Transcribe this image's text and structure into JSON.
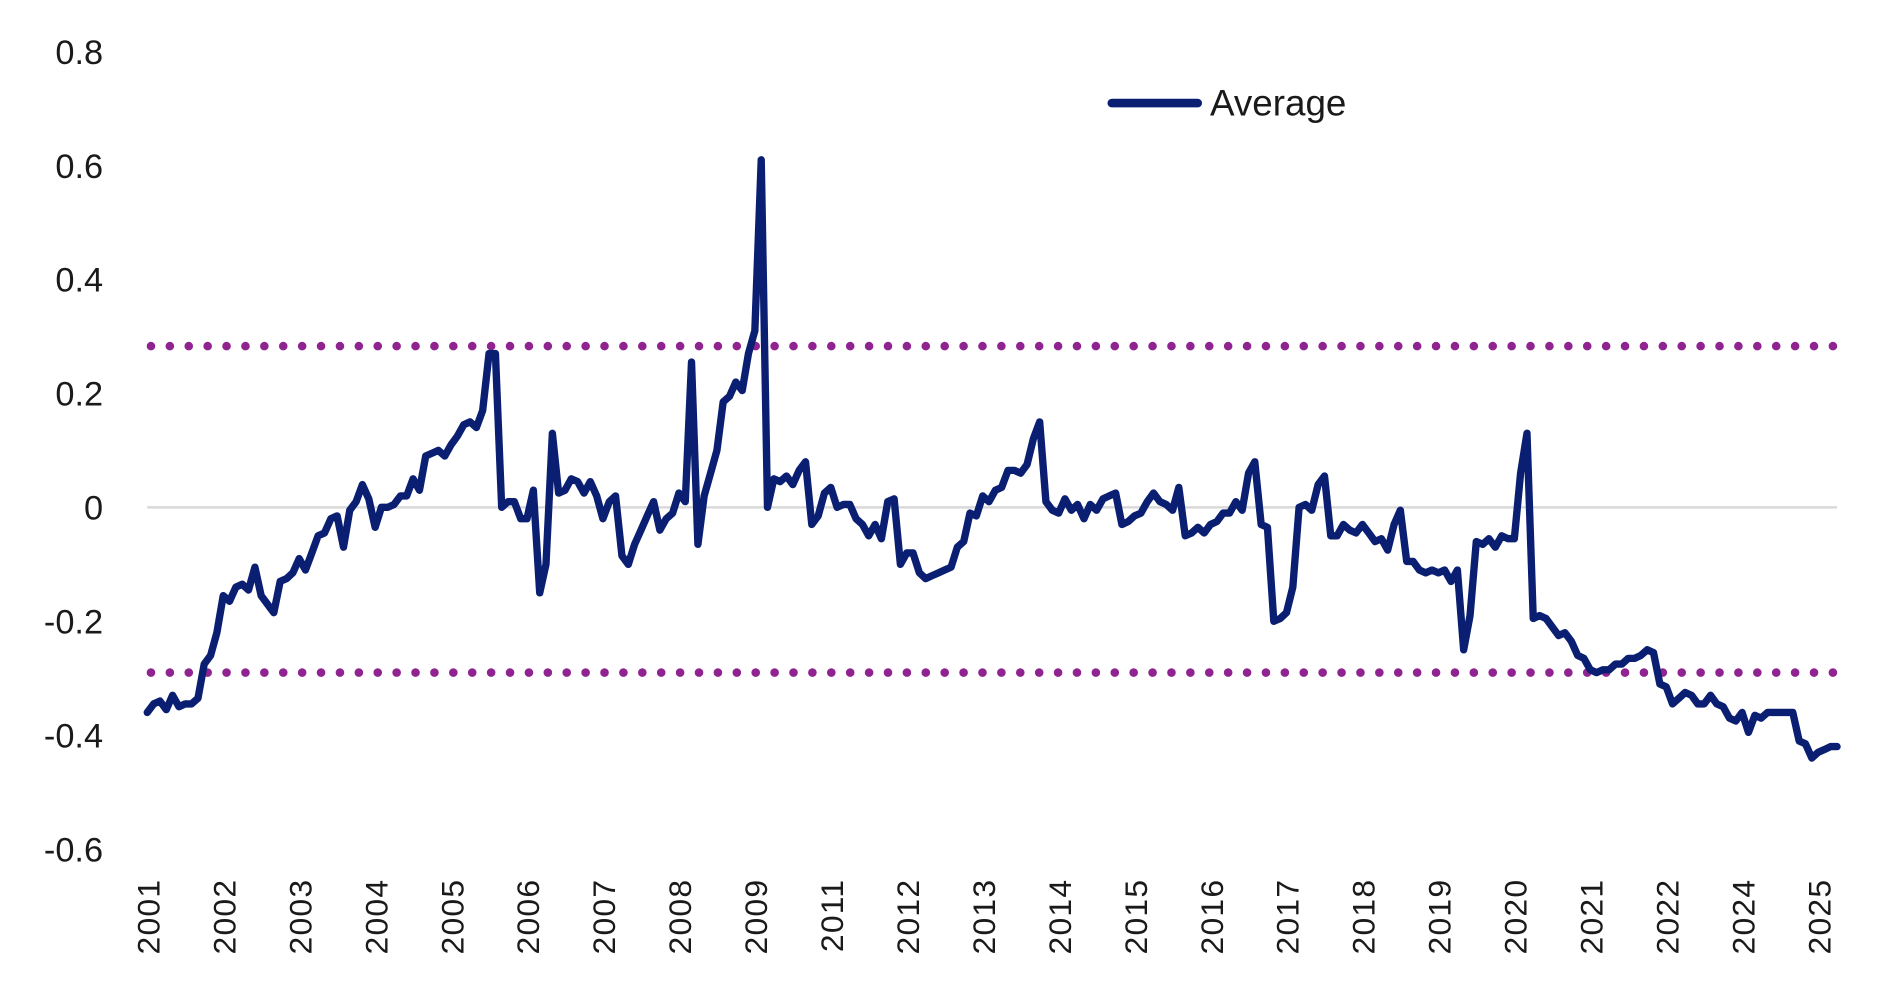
{
  "chart_data": {
    "type": "line",
    "title": "",
    "xlabel": "",
    "ylabel": "",
    "ylim": [
      -0.6,
      0.8
    ],
    "y_ticks": [
      "0.8",
      "0.6",
      "0.4",
      "0.2",
      "0",
      "-0.2",
      "-0.4",
      "-0.6"
    ],
    "y_tick_values": [
      0.8,
      0.6,
      0.4,
      0.2,
      0,
      -0.2,
      -0.4,
      -0.6
    ],
    "x_tick_labels": [
      "2001",
      "2002",
      "2003",
      "2004",
      "2005",
      "2006",
      "2007",
      "2008",
      "2009",
      "2011",
      "2012",
      "2013",
      "2014",
      "2015",
      "2016",
      "2017",
      "2018",
      "2019",
      "2020",
      "2021",
      "2022",
      "2024",
      "2025"
    ],
    "x_tick_every": 12,
    "grid": "zero line only",
    "legend": {
      "position": "top-center",
      "entries": [
        "Average"
      ]
    },
    "series": [
      {
        "name": "Average",
        "color": "#0b1f72",
        "values": [
          -0.36,
          -0.345,
          -0.34,
          -0.355,
          -0.33,
          -0.35,
          -0.345,
          -0.345,
          -0.335,
          -0.275,
          -0.26,
          -0.22,
          -0.155,
          -0.165,
          -0.14,
          -0.135,
          -0.145,
          -0.105,
          -0.155,
          -0.17,
          -0.185,
          -0.13,
          -0.125,
          -0.115,
          -0.09,
          -0.11,
          -0.08,
          -0.05,
          -0.045,
          -0.02,
          -0.015,
          -0.07,
          -0.005,
          0.01,
          0.04,
          0.015,
          -0.035,
          0.0,
          0.0,
          0.005,
          0.02,
          0.02,
          0.05,
          0.03,
          0.09,
          0.095,
          0.1,
          0.09,
          0.11,
          0.125,
          0.145,
          0.15,
          0.14,
          0.17,
          0.27,
          0.27,
          0.0,
          0.01,
          0.01,
          -0.02,
          -0.02,
          0.03,
          -0.15,
          -0.1,
          0.13,
          0.025,
          0.03,
          0.05,
          0.045,
          0.025,
          0.045,
          0.02,
          -0.02,
          0.01,
          0.02,
          -0.085,
          -0.1,
          -0.065,
          -0.04,
          -0.015,
          0.01,
          -0.04,
          -0.02,
          -0.01,
          0.025,
          0.01,
          0.255,
          -0.065,
          0.02,
          0.06,
          0.1,
          0.185,
          0.195,
          0.22,
          0.205,
          0.27,
          0.31,
          0.61,
          0.0,
          0.05,
          0.045,
          0.055,
          0.04,
          0.065,
          0.08,
          -0.03,
          -0.015,
          0.025,
          0.035,
          0.0,
          0.005,
          0.005,
          -0.02,
          -0.03,
          -0.05,
          -0.03,
          -0.055,
          0.01,
          0.015,
          -0.1,
          -0.08,
          -0.08,
          -0.115,
          -0.125,
          -0.12,
          -0.115,
          -0.11,
          -0.105,
          -0.07,
          -0.06,
          -0.01,
          -0.015,
          0.02,
          0.01,
          0.03,
          0.035,
          0.065,
          0.065,
          0.06,
          0.075,
          0.12,
          0.15,
          0.01,
          -0.005,
          -0.01,
          0.015,
          -0.005,
          0.005,
          -0.02,
          0.005,
          -0.005,
          0.015,
          0.02,
          0.025,
          -0.03,
          -0.025,
          -0.015,
          -0.01,
          0.01,
          0.025,
          0.01,
          0.005,
          -0.005,
          0.035,
          -0.05,
          -0.045,
          -0.035,
          -0.045,
          -0.03,
          -0.025,
          -0.01,
          -0.01,
          0.01,
          -0.005,
          0.06,
          0.08,
          -0.03,
          -0.035,
          -0.2,
          -0.195,
          -0.185,
          -0.14,
          0.0,
          0.005,
          -0.005,
          0.04,
          0.055,
          -0.05,
          -0.05,
          -0.03,
          -0.04,
          -0.045,
          -0.03,
          -0.045,
          -0.06,
          -0.055,
          -0.075,
          -0.03,
          -0.005,
          -0.095,
          -0.095,
          -0.11,
          -0.115,
          -0.11,
          -0.115,
          -0.11,
          -0.13,
          -0.11,
          -0.25,
          -0.19,
          -0.06,
          -0.065,
          -0.055,
          -0.07,
          -0.05,
          -0.055,
          -0.055,
          0.06,
          0.13,
          -0.195,
          -0.19,
          -0.195,
          -0.21,
          -0.225,
          -0.22,
          -0.235,
          -0.26,
          -0.265,
          -0.285,
          -0.29,
          -0.285,
          -0.285,
          -0.275,
          -0.275,
          -0.265,
          -0.265,
          -0.26,
          -0.25,
          -0.255,
          -0.31,
          -0.315,
          -0.345,
          -0.335,
          -0.325,
          -0.33,
          -0.345,
          -0.345,
          -0.33,
          -0.345,
          -0.35,
          -0.37,
          -0.375,
          -0.36,
          -0.395,
          -0.365,
          -0.37,
          -0.36,
          -0.36,
          -0.36,
          -0.36,
          -0.36,
          -0.41,
          -0.415,
          -0.44,
          -0.43,
          -0.425,
          -0.42,
          -0.42
        ]
      }
    ],
    "reference_lines": [
      {
        "value": 0.283,
        "style": "dotted",
        "color": "#8f2390"
      },
      {
        "value": -0.29,
        "style": "dotted",
        "color": "#8f2390"
      }
    ],
    "zero_line_color": "#d9d9d9"
  }
}
